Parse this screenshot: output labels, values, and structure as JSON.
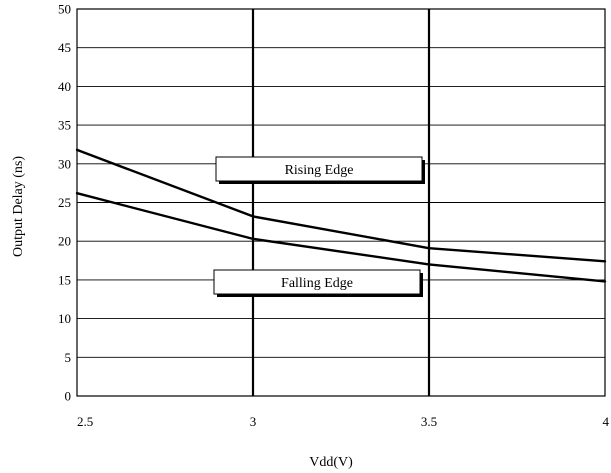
{
  "chart_data": {
    "type": "line",
    "title": "",
    "xlabel": "Vdd(V)",
    "ylabel": "Output Delay (ns)",
    "xlim": [
      2.5,
      4
    ],
    "ylim": [
      0,
      50
    ],
    "x_ticks": [
      "2.5",
      "3",
      "3.5",
      "4"
    ],
    "y_ticks": [
      "0",
      "5",
      "10",
      "15",
      "20",
      "25",
      "30",
      "35",
      "40",
      "45",
      "50"
    ],
    "grid": "horizontal-y and vertical-x",
    "x": [
      2.5,
      3,
      3.5,
      4
    ],
    "series": [
      {
        "name": "Rising Edge",
        "values": [
          31.8,
          23.2,
          19.1,
          17.4
        ]
      },
      {
        "name": "Falling Edge",
        "values": [
          26.2,
          20.3,
          17.0,
          14.8
        ]
      }
    ],
    "annotations": [
      {
        "text": "Rising Edge",
        "target_series": "Rising Edge"
      },
      {
        "text": "Falling Edge",
        "target_series": "Falling Edge"
      }
    ],
    "colors": {
      "line": "#000000",
      "grid": "#000000",
      "background": "#ffffff"
    }
  }
}
